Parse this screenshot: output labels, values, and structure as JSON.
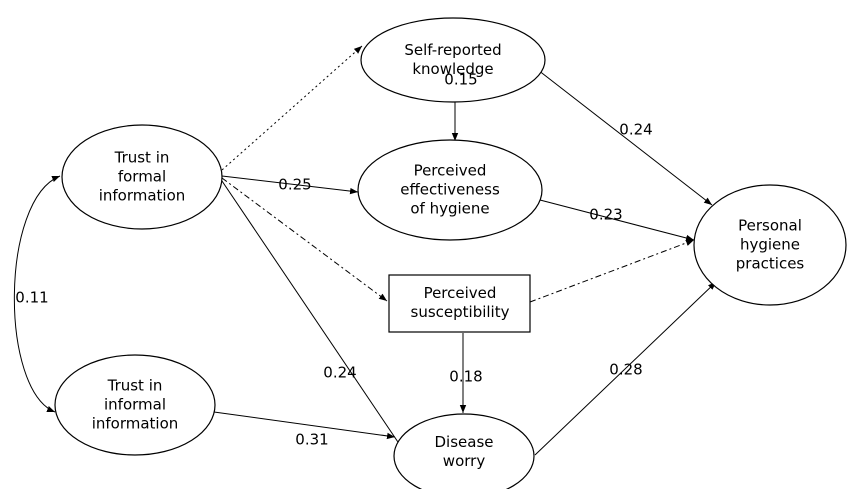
{
  "nodes": [
    {
      "lines": [
        "Trust in",
        "formal",
        "information"
      ]
    },
    {
      "lines": [
        "Trust in",
        "informal",
        "information"
      ]
    },
    {
      "lines": [
        "Self-reported",
        "knowledge"
      ]
    },
    {
      "lines": [
        "Perceived",
        "effectiveness",
        "of hygiene"
      ]
    },
    {
      "lines": [
        "Perceived",
        "susceptibility"
      ]
    },
    {
      "lines": [
        "Disease",
        "worry"
      ]
    },
    {
      "lines": [
        "Personal",
        "hygiene",
        "practices"
      ]
    }
  ],
  "edges": [
    {
      "label": "0.25"
    },
    {
      "label": "0.24"
    },
    {
      "label": "0.15"
    },
    {
      "label": "0.24"
    },
    {
      "label": "0.23"
    },
    {
      "label": "0.18"
    },
    {
      "label": "0.31"
    },
    {
      "label": "0.28"
    },
    {
      "label": "0.11"
    }
  ]
}
